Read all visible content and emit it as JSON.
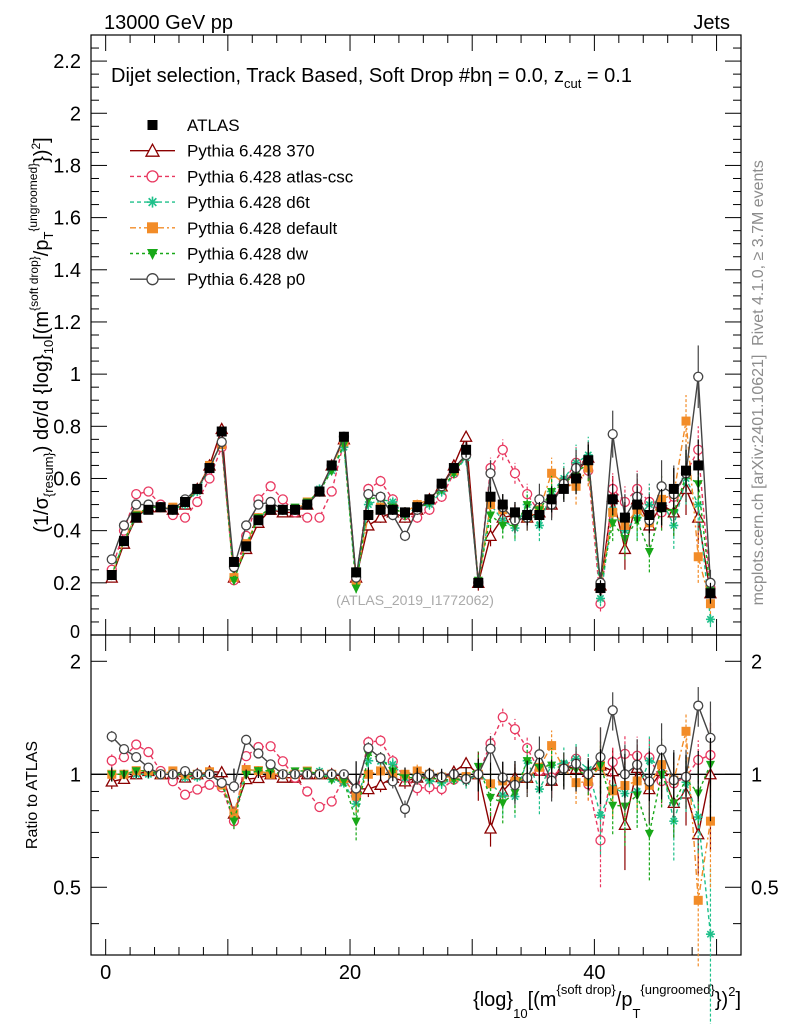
{
  "header": {
    "left": "13000 GeV pp",
    "right": "Jets"
  },
  "side_labels": {
    "rivet": "Rivet 4.1.0, ≥ 3.7M events",
    "mcplots": "mcplots.cern.ch [arXiv:2401.10621]"
  },
  "chart_data": {
    "type": "line",
    "title": "Dijet selection, Track Based, Soft Drop #beta = 0.0, z_cut = 0.1",
    "title_parts": {
      "main": "Dijet selection, Track Based, Soft Drop #b",
      "eta": "η = 0.0, z",
      "cut": "cut",
      "tail": " = 0.1"
    },
    "watermark": "(ATLAS_2019_I1772062)",
    "xlabel": "{log}_10[(m^{soft drop}/p_T^{ungroomed})^2]",
    "xlabel_parts": {
      "a": "{log}",
      "b": "10",
      "c": "[(m",
      "d": "{soft drop}",
      "e": "/p",
      "f": "T",
      "g": "{ungroomed}",
      "h": "})",
      "i": "2",
      "j": "]"
    },
    "ylabel": "(1/σ_{resum}) dσ/d {log}_10[(m^{soft drop}/p_T^{ungroomed})^2]",
    "ylabel_parts": {
      "a": "(1/σ",
      "b": "{resum}",
      "c": ") dσ/d {log}",
      "d": "10",
      "e": "[(m",
      "f": "{soft drop}",
      "g": "/p",
      "h": "T",
      "i": "{ungroomed}",
      "j": "})",
      "k": "2",
      "l": "]"
    },
    "ratio_ylabel": "Ratio to ATLAS",
    "xlim": [
      -1.2,
      52
    ],
    "ylim_main": [
      0,
      2.3
    ],
    "ylim_ratio": [
      0.33,
      2.35
    ],
    "x_ticks": [
      0,
      20,
      40
    ],
    "x_tick_labels": [
      "0",
      "20",
      "40"
    ],
    "y_ticks_main": [
      0.2,
      0.4,
      0.6,
      0.8,
      1,
      1.2,
      1.4,
      1.6,
      1.8,
      2,
      2.2
    ],
    "y_tick_labels_main": [
      "0.2",
      "0.4",
      "0.6",
      "0.8",
      "1",
      "1.2",
      "1.4",
      "1.6",
      "1.8",
      "2",
      "2.2"
    ],
    "y_zero_label": "0",
    "y_ticks_ratio": [
      0.5,
      1,
      2
    ],
    "y_tick_labels_ratio": [
      "0.5",
      "1",
      "2"
    ],
    "y_tick_labels_ratio_right": [
      "0.5",
      "1",
      "2"
    ],
    "x": [
      0,
      1,
      2,
      3,
      4,
      5,
      6,
      7,
      8,
      9,
      10,
      11,
      12,
      13,
      14,
      15,
      16,
      17,
      18,
      19,
      20,
      21,
      22,
      23,
      24,
      25,
      26,
      27,
      28,
      29,
      30,
      31,
      32,
      33,
      34,
      35,
      36,
      37,
      38,
      39,
      40,
      41,
      42,
      43,
      44,
      45,
      46,
      47,
      48,
      49
    ],
    "series": [
      {
        "name": "ATLAS",
        "color": "#000000",
        "marker": "square",
        "dash": "none",
        "values": [
          0.23,
          0.36,
          0.45,
          0.48,
          0.49,
          0.48,
          0.51,
          0.56,
          0.64,
          0.78,
          0.28,
          0.34,
          0.44,
          0.48,
          0.48,
          0.48,
          0.5,
          0.55,
          0.65,
          0.76,
          0.24,
          0.46,
          0.48,
          0.48,
          0.47,
          0.49,
          0.52,
          0.58,
          0.64,
          0.71,
          0.2,
          0.53,
          0.5,
          0.47,
          0.46,
          0.46,
          0.52,
          0.56,
          0.6,
          0.67,
          0.18,
          0.52,
          0.45,
          0.5,
          0.46,
          0.49,
          0.56,
          0.63,
          0.65,
          0.16
        ],
        "errors": [
          0.01,
          0.01,
          0.01,
          0.01,
          0.01,
          0.01,
          0.01,
          0.01,
          0.01,
          0.01,
          0.01,
          0.01,
          0.01,
          0.01,
          0.01,
          0.01,
          0.01,
          0.01,
          0.01,
          0.01,
          0.02,
          0.02,
          0.02,
          0.02,
          0.02,
          0.02,
          0.02,
          0.02,
          0.02,
          0.03,
          0.02,
          0.04,
          0.04,
          0.04,
          0.04,
          0.05,
          0.05,
          0.05,
          0.06,
          0.06,
          0.03,
          0.06,
          0.06,
          0.07,
          0.07,
          0.07,
          0.08,
          0.08,
          0.1,
          0.04
        ]
      },
      {
        "name": "Pythia 6.428 370",
        "color": "#8b0000",
        "marker": "open-triangle",
        "dash": "none",
        "values": [
          0.22,
          0.35,
          0.45,
          0.49,
          0.49,
          0.48,
          0.5,
          0.56,
          0.65,
          0.79,
          0.22,
          0.33,
          0.43,
          0.48,
          0.47,
          0.47,
          0.5,
          0.55,
          0.65,
          0.75,
          0.22,
          0.42,
          0.45,
          0.47,
          0.45,
          0.48,
          0.52,
          0.57,
          0.65,
          0.76,
          0.2,
          0.38,
          0.45,
          0.46,
          0.45,
          0.47,
          0.5,
          0.59,
          0.62,
          0.68,
          0.19,
          0.53,
          0.33,
          0.52,
          0.42,
          0.5,
          0.47,
          0.56,
          0.45,
          0.16
        ],
        "errors": [
          0.01,
          0.01,
          0.01,
          0.01,
          0.01,
          0.01,
          0.01,
          0.01,
          0.01,
          0.01,
          0.01,
          0.01,
          0.01,
          0.01,
          0.01,
          0.01,
          0.01,
          0.01,
          0.01,
          0.01,
          0.02,
          0.02,
          0.02,
          0.02,
          0.02,
          0.02,
          0.02,
          0.02,
          0.02,
          0.02,
          0.03,
          0.04,
          0.04,
          0.04,
          0.04,
          0.05,
          0.05,
          0.05,
          0.05,
          0.06,
          0.05,
          0.08,
          0.08,
          0.08,
          0.08,
          0.09,
          0.09,
          0.1,
          0.1,
          0.06
        ]
      },
      {
        "name": "Pythia 6.428 atlas-csc",
        "color": "#e8375f",
        "marker": "open-circle",
        "dash": "4,3",
        "values": [
          0.25,
          0.4,
          0.54,
          0.55,
          0.5,
          0.46,
          0.45,
          0.51,
          0.6,
          0.72,
          0.21,
          0.38,
          0.52,
          0.57,
          0.52,
          0.47,
          0.45,
          0.45,
          0.55,
          0.74,
          0.21,
          0.56,
          0.59,
          0.52,
          0.46,
          0.45,
          0.48,
          0.53,
          0.62,
          0.69,
          0.2,
          0.64,
          0.71,
          0.62,
          0.54,
          0.47,
          0.51,
          0.59,
          0.66,
          0.63,
          0.12,
          0.56,
          0.51,
          0.56,
          0.51,
          0.47,
          0.53,
          0.62,
          0.71,
          0.18
        ],
        "errors": [
          0.01,
          0.01,
          0.01,
          0.01,
          0.01,
          0.01,
          0.01,
          0.01,
          0.01,
          0.01,
          0.01,
          0.01,
          0.01,
          0.01,
          0.01,
          0.01,
          0.01,
          0.01,
          0.01,
          0.01,
          0.02,
          0.02,
          0.02,
          0.02,
          0.02,
          0.02,
          0.02,
          0.02,
          0.02,
          0.03,
          0.02,
          0.04,
          0.04,
          0.04,
          0.04,
          0.05,
          0.05,
          0.05,
          0.06,
          0.06,
          0.03,
          0.06,
          0.06,
          0.07,
          0.07,
          0.07,
          0.08,
          0.08,
          0.09,
          0.04
        ]
      },
      {
        "name": "Pythia 6.428 d6t",
        "color": "#1ec08a",
        "marker": "star",
        "dash": "4,3",
        "values": [
          0.23,
          0.36,
          0.45,
          0.48,
          0.49,
          0.48,
          0.5,
          0.55,
          0.64,
          0.74,
          0.22,
          0.35,
          0.45,
          0.48,
          0.48,
          0.48,
          0.5,
          0.56,
          0.63,
          0.72,
          0.2,
          0.5,
          0.52,
          0.51,
          0.46,
          0.49,
          0.5,
          0.55,
          0.62,
          0.68,
          0.2,
          0.5,
          0.44,
          0.41,
          0.5,
          0.42,
          0.55,
          0.6,
          0.66,
          0.69,
          0.14,
          0.48,
          0.4,
          0.45,
          0.5,
          0.52,
          0.42,
          0.6,
          0.5,
          0.06
        ],
        "errors": [
          0.01,
          0.01,
          0.01,
          0.01,
          0.01,
          0.01,
          0.01,
          0.01,
          0.01,
          0.01,
          0.01,
          0.01,
          0.01,
          0.01,
          0.01,
          0.01,
          0.01,
          0.01,
          0.01,
          0.01,
          0.02,
          0.02,
          0.02,
          0.02,
          0.02,
          0.02,
          0.02,
          0.02,
          0.02,
          0.03,
          0.02,
          0.05,
          0.05,
          0.05,
          0.05,
          0.06,
          0.06,
          0.06,
          0.07,
          0.07,
          0.03,
          0.07,
          0.08,
          0.08,
          0.08,
          0.09,
          0.09,
          0.1,
          0.1,
          0.03
        ]
      },
      {
        "name": "Pythia 6.428 default",
        "color": "#f28c28",
        "marker": "square",
        "dash": "6,3,2,3",
        "values": [
          0.23,
          0.36,
          0.46,
          0.49,
          0.49,
          0.49,
          0.51,
          0.56,
          0.65,
          0.73,
          0.22,
          0.35,
          0.45,
          0.48,
          0.48,
          0.48,
          0.51,
          0.55,
          0.65,
          0.74,
          0.21,
          0.46,
          0.49,
          0.48,
          0.47,
          0.5,
          0.52,
          0.57,
          0.63,
          0.7,
          0.2,
          0.5,
          0.48,
          0.45,
          0.45,
          0.48,
          0.62,
          0.58,
          0.57,
          0.64,
          0.19,
          0.47,
          0.42,
          0.48,
          0.43,
          0.52,
          0.54,
          0.82,
          0.3,
          0.12
        ],
        "errors": [
          0.01,
          0.01,
          0.01,
          0.01,
          0.01,
          0.01,
          0.01,
          0.01,
          0.01,
          0.01,
          0.01,
          0.01,
          0.01,
          0.01,
          0.01,
          0.01,
          0.01,
          0.01,
          0.01,
          0.01,
          0.02,
          0.02,
          0.02,
          0.02,
          0.02,
          0.02,
          0.02,
          0.02,
          0.02,
          0.03,
          0.02,
          0.05,
          0.05,
          0.05,
          0.05,
          0.06,
          0.06,
          0.06,
          0.07,
          0.07,
          0.03,
          0.07,
          0.08,
          0.08,
          0.08,
          0.09,
          0.09,
          0.1,
          0.1,
          0.04
        ]
      },
      {
        "name": "Pythia 6.428 dw",
        "color": "#18a818",
        "marker": "down-triangle",
        "dash": "3,3",
        "values": [
          0.23,
          0.36,
          0.46,
          0.49,
          0.49,
          0.48,
          0.51,
          0.56,
          0.64,
          0.74,
          0.21,
          0.34,
          0.45,
          0.49,
          0.48,
          0.49,
          0.51,
          0.55,
          0.63,
          0.73,
          0.18,
          0.52,
          0.53,
          0.49,
          0.46,
          0.48,
          0.51,
          0.56,
          0.62,
          0.69,
          0.21,
          0.46,
          0.42,
          0.42,
          0.5,
          0.48,
          0.55,
          0.58,
          0.62,
          0.66,
          0.19,
          0.43,
          0.37,
          0.44,
          0.32,
          0.49,
          0.47,
          0.61,
          0.58,
          0.17
        ],
        "errors": [
          0.01,
          0.01,
          0.01,
          0.01,
          0.01,
          0.01,
          0.01,
          0.01,
          0.01,
          0.01,
          0.01,
          0.01,
          0.01,
          0.01,
          0.01,
          0.01,
          0.01,
          0.01,
          0.01,
          0.01,
          0.02,
          0.02,
          0.02,
          0.02,
          0.02,
          0.02,
          0.02,
          0.02,
          0.02,
          0.03,
          0.02,
          0.05,
          0.05,
          0.05,
          0.05,
          0.06,
          0.06,
          0.06,
          0.07,
          0.07,
          0.03,
          0.07,
          0.08,
          0.08,
          0.08,
          0.09,
          0.09,
          0.1,
          0.1,
          0.04
        ]
      },
      {
        "name": "Pythia 6.428 p0",
        "color": "#444444",
        "marker": "open-circle",
        "dash": "none",
        "values": [
          0.29,
          0.42,
          0.5,
          0.5,
          0.49,
          0.48,
          0.52,
          0.56,
          0.64,
          0.74,
          0.26,
          0.42,
          0.5,
          0.51,
          0.48,
          0.48,
          0.5,
          0.55,
          0.65,
          0.76,
          0.22,
          0.54,
          0.53,
          0.46,
          0.38,
          0.48,
          0.52,
          0.57,
          0.64,
          0.69,
          0.2,
          0.62,
          0.49,
          0.44,
          0.45,
          0.52,
          0.5,
          0.58,
          0.64,
          0.67,
          0.2,
          0.77,
          0.45,
          0.53,
          0.44,
          0.57,
          0.54,
          0.62,
          0.99,
          0.2
        ],
        "errors": [
          0.01,
          0.01,
          0.01,
          0.01,
          0.01,
          0.01,
          0.01,
          0.01,
          0.01,
          0.01,
          0.01,
          0.01,
          0.01,
          0.01,
          0.01,
          0.01,
          0.01,
          0.01,
          0.01,
          0.01,
          0.02,
          0.02,
          0.02,
          0.02,
          0.02,
          0.02,
          0.02,
          0.02,
          0.02,
          0.03,
          0.02,
          0.05,
          0.05,
          0.05,
          0.05,
          0.06,
          0.06,
          0.06,
          0.07,
          0.07,
          0.04,
          0.09,
          0.09,
          0.09,
          0.1,
          0.1,
          0.11,
          0.11,
          0.12,
          0.05
        ]
      }
    ]
  }
}
